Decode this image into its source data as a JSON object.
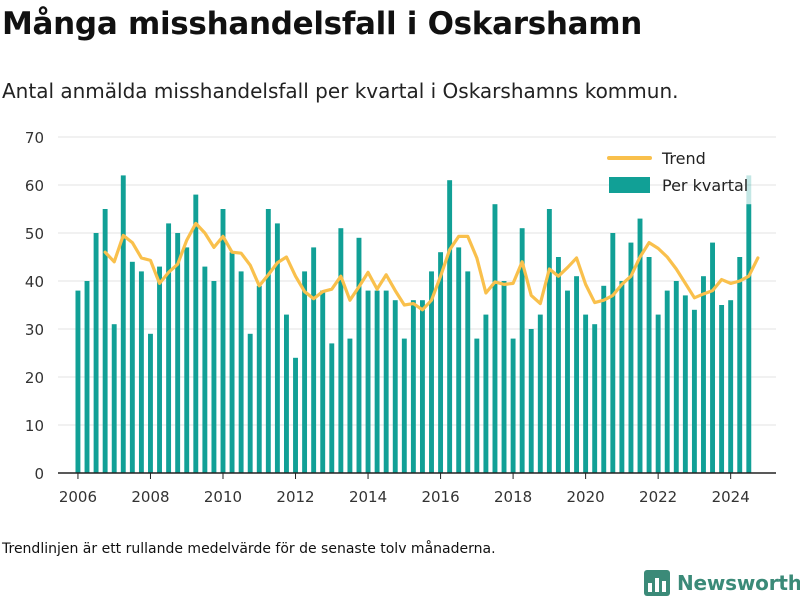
{
  "header": {
    "title": "Många misshandelsfall i Oskarshamn",
    "subtitle": "Antal anmälda misshandelsfall per kvartal i Oskarshamns kommun."
  },
  "footnote": "Trendlinjen är ett rullande medelvärde för de senaste tolv månaderna.",
  "brand": {
    "name": "Newsworthy",
    "color": "#3b8a78",
    "icon": "newsworthy-bar-chart-icon"
  },
  "chart_data": {
    "type": "bar",
    "title": "",
    "xlabel": "",
    "ylabel": "",
    "ylim": [
      0,
      70
    ],
    "y_ticks": [
      0,
      10,
      20,
      30,
      40,
      50,
      60,
      70
    ],
    "x_ticks": [
      {
        "label": "2006",
        "value": 2006.0
      },
      {
        "label": "2008",
        "value": 2008.0
      },
      {
        "label": "2010",
        "value": 2010.0
      },
      {
        "label": "2012",
        "value": 2012.0
      },
      {
        "label": "2014",
        "value": 2014.0
      },
      {
        "label": "2016",
        "value": 2016.0
      },
      {
        "label": "2018",
        "value": 2018.0
      },
      {
        "label": "2020",
        "value": 2020.0
      },
      {
        "label": "2022",
        "value": 2022.0
      },
      {
        "label": "2024",
        "value": 2024.0
      }
    ],
    "grid": true,
    "legend": "top-right",
    "colors": {
      "bars": "#11a096",
      "trend": "#f9c04c",
      "grid": "#e3e3e3",
      "axis": "#222222"
    },
    "series": [
      {
        "name": "Per kvartal",
        "type": "bar",
        "start_year": 2006,
        "start_quarter": 1,
        "values": [
          38,
          40,
          50,
          55,
          31,
          62,
          44,
          42,
          29,
          43,
          52,
          50,
          47,
          58,
          43,
          40,
          55,
          46,
          42,
          29,
          39,
          55,
          52,
          33,
          24,
          42,
          47,
          38,
          27,
          51,
          28,
          49,
          38,
          38,
          38,
          36,
          28,
          36,
          36,
          42,
          46,
          61,
          47,
          42,
          28,
          33,
          56,
          40,
          28,
          51,
          30,
          33,
          55,
          45,
          38,
          41,
          33,
          31,
          39,
          50,
          40,
          48,
          53,
          45,
          33,
          38,
          40,
          37,
          34,
          41,
          48,
          35,
          36,
          45,
          56
        ],
        "partial_last_value": 62
      },
      {
        "name": "Trend",
        "type": "line",
        "start_year": 2006,
        "start_quarter": 4,
        "values": [
          46.0,
          44.0,
          49.5,
          48.0,
          44.8,
          44.3,
          39.5,
          41.8,
          43.5,
          48.5,
          52.0,
          50.0,
          47.0,
          49.3,
          46.0,
          45.8,
          43.3,
          39.0,
          41.3,
          43.8,
          45.0,
          41.0,
          37.8,
          36.3,
          37.8,
          38.3,
          41.0,
          36.0,
          38.8,
          41.8,
          38.3,
          41.3,
          38.0,
          35.0,
          35.3,
          34.0,
          36.0,
          41.0,
          46.5,
          49.3,
          49.3,
          44.8,
          37.5,
          39.8,
          39.3,
          39.5,
          44.0,
          37.0,
          35.3,
          42.5,
          41.0,
          42.8,
          44.8,
          39.3,
          35.5,
          36.0,
          37.0,
          39.3,
          41.0,
          45.0,
          48.0,
          46.8,
          45.0,
          42.5,
          39.5,
          36.5,
          37.3,
          38.0,
          40.3,
          39.5,
          40.0,
          41.0,
          44.8
        ]
      }
    ]
  }
}
